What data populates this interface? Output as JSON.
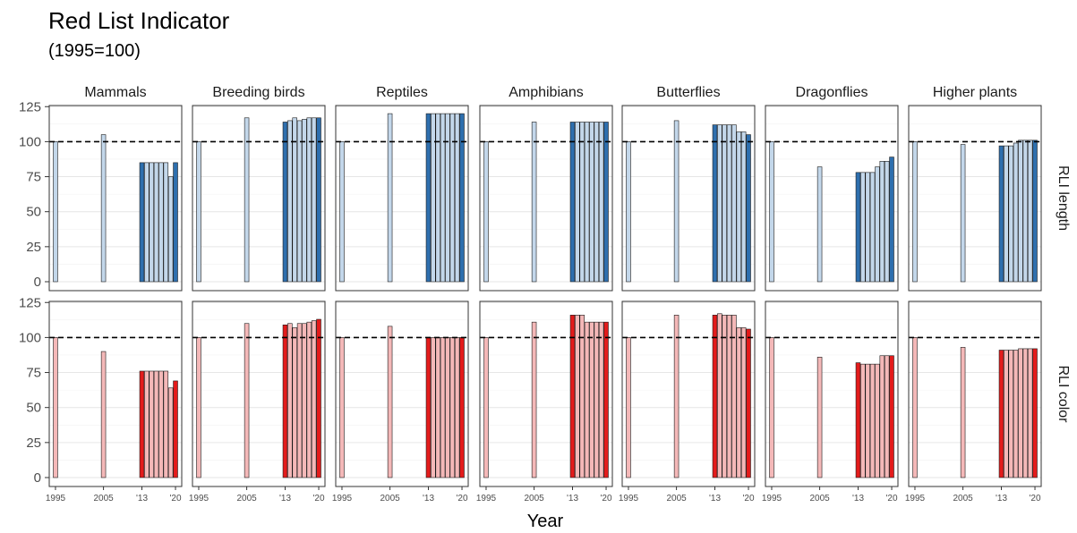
{
  "title": "Red List Indicator",
  "subtitle": "(1995=100)",
  "chart_data": {
    "type": "bar",
    "xlabel": "Year",
    "ylim": [
      0,
      125
    ],
    "y_ticks": [
      0,
      25,
      50,
      75,
      100,
      125
    ],
    "reference_line": 100,
    "x_tick_labels": [
      "1995",
      "2005",
      "'13",
      "'20"
    ],
    "x": [
      1995,
      2005,
      2013,
      2014,
      2015,
      2016,
      2017,
      2018,
      2019,
      2020
    ],
    "columns": [
      "Mammals",
      "Breeding birds",
      "Reptiles",
      "Amphibians",
      "Butterflies",
      "Dragonflies",
      "Higher plants"
    ],
    "rows": [
      {
        "name": "RLI length",
        "colors": {
          "highlight": "#2e6fae",
          "normal": "#c3d7ea",
          "stroke": "#1a1a1a"
        },
        "series": [
          {
            "name": "Mammals",
            "values": [
              100,
              105,
              85,
              85,
              85,
              85,
              85,
              85,
              75,
              85
            ]
          },
          {
            "name": "Breeding birds",
            "values": [
              100,
              117,
              114,
              115,
              117,
              115,
              116,
              117,
              117,
              117
            ]
          },
          {
            "name": "Reptiles",
            "values": [
              100,
              120,
              120,
              120,
              120,
              120,
              120,
              120,
              120,
              120
            ]
          },
          {
            "name": "Amphibians",
            "values": [
              100,
              114,
              114,
              114,
              114,
              114,
              114,
              114,
              114,
              114
            ]
          },
          {
            "name": "Butterflies",
            "values": [
              100,
              115,
              112,
              112,
              112,
              112,
              112,
              107,
              107,
              105
            ]
          },
          {
            "name": "Dragonflies",
            "values": [
              100,
              82,
              78,
              78,
              78,
              78,
              82,
              86,
              86,
              89
            ]
          },
          {
            "name": "Higher plants",
            "values": [
              100,
              98,
              97,
              97,
              97,
              99,
              101,
              101,
              101,
              101
            ]
          }
        ]
      },
      {
        "name": "RLI color",
        "colors": {
          "highlight": "#e31b1b",
          "normal": "#f4b8b8",
          "stroke": "#1a1a1a"
        },
        "series": [
          {
            "name": "Mammals",
            "values": [
              100,
              90,
              76,
              76,
              76,
              76,
              76,
              76,
              64,
              69
            ]
          },
          {
            "name": "Breeding birds",
            "values": [
              100,
              110,
              109,
              110,
              107,
              110,
              110,
              111,
              112,
              113
            ]
          },
          {
            "name": "Reptiles",
            "values": [
              100,
              108,
              100,
              100,
              100,
              100,
              100,
              100,
              100,
              100
            ]
          },
          {
            "name": "Amphibians",
            "values": [
              100,
              111,
              116,
              116,
              116,
              111,
              111,
              111,
              111,
              111
            ]
          },
          {
            "name": "Butterflies",
            "values": [
              100,
              116,
              116,
              117,
              116,
              116,
              116,
              107,
              107,
              106
            ]
          },
          {
            "name": "Dragonflies",
            "values": [
              100,
              86,
              82,
              81,
              81,
              81,
              81,
              87,
              87,
              87
            ]
          },
          {
            "name": "Higher plants",
            "values": [
              100,
              93,
              91,
              91,
              91,
              91,
              92,
              92,
              92,
              92
            ]
          }
        ]
      }
    ],
    "grid": true,
    "panel_border": true
  }
}
